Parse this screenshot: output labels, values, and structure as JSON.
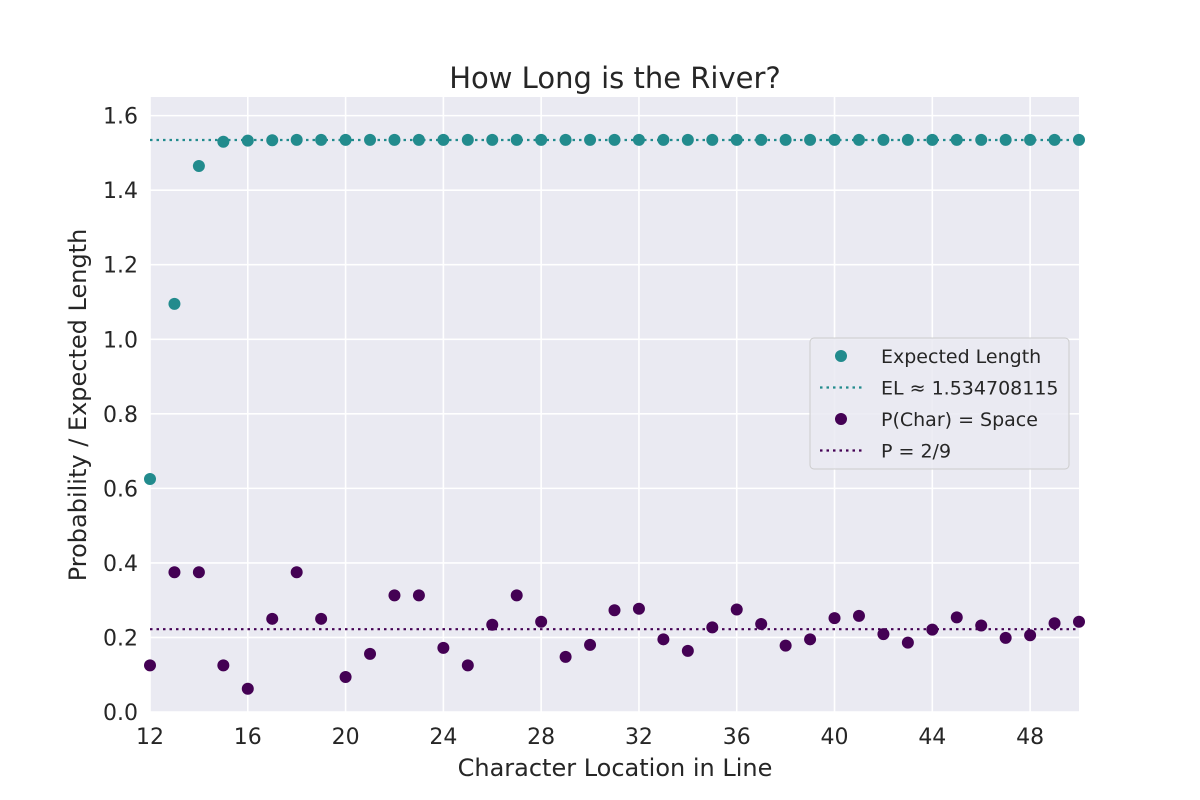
{
  "chart_data": {
    "type": "scatter",
    "title": "How Long is the River?",
    "xlabel": "Character Location in Line",
    "ylabel": "Probability / Expected Length",
    "xlim": [
      12,
      50
    ],
    "ylim": [
      0.0,
      1.65
    ],
    "xticks": [
      12,
      16,
      20,
      24,
      28,
      32,
      36,
      40,
      44,
      48
    ],
    "yticks": [
      "0.0",
      "0.2",
      "0.4",
      "0.6",
      "0.8",
      "1.0",
      "1.2",
      "1.4",
      "1.6"
    ],
    "grid": true,
    "background": "#eaeaf2",
    "legend_position": "center-right",
    "series": [
      {
        "name": "Expected Length",
        "color": "#228b8d",
        "kind": "scatter",
        "x": [
          12,
          13,
          14,
          15,
          16,
          17,
          18,
          19,
          20,
          21,
          22,
          23,
          24,
          25,
          26,
          27,
          28,
          29,
          30,
          31,
          32,
          33,
          34,
          35,
          36,
          37,
          38,
          39,
          40,
          41,
          42,
          43,
          44,
          45,
          46,
          47,
          48,
          49,
          50
        ],
        "y": [
          0.625,
          1.095,
          1.465,
          1.53,
          1.533,
          1.534,
          1.535,
          1.535,
          1.535,
          1.535,
          1.535,
          1.535,
          1.535,
          1.535,
          1.535,
          1.535,
          1.535,
          1.535,
          1.535,
          1.535,
          1.535,
          1.535,
          1.535,
          1.535,
          1.535,
          1.535,
          1.535,
          1.535,
          1.535,
          1.535,
          1.535,
          1.535,
          1.535,
          1.535,
          1.535,
          1.535,
          1.535,
          1.535,
          1.535
        ]
      },
      {
        "name": "EL ≈ 1.534708115",
        "color": "#228b8d",
        "kind": "hline",
        "y": 1.534708115
      },
      {
        "name": "P(Char) = Space",
        "color": "#440154",
        "kind": "scatter",
        "x": [
          12,
          13,
          14,
          15,
          16,
          17,
          18,
          19,
          20,
          21,
          22,
          23,
          24,
          25,
          26,
          27,
          28,
          29,
          30,
          31,
          32,
          33,
          34,
          35,
          36,
          37,
          38,
          39,
          40,
          41,
          42,
          43,
          44,
          45,
          46,
          47,
          48,
          49,
          50
        ],
        "y": [
          0.125,
          0.375,
          0.375,
          0.125,
          0.0625,
          0.25,
          0.375,
          0.25,
          0.094,
          0.156,
          0.313,
          0.313,
          0.172,
          0.125,
          0.234,
          0.313,
          0.242,
          0.148,
          0.18,
          0.273,
          0.277,
          0.195,
          0.164,
          0.227,
          0.275,
          0.236,
          0.178,
          0.195,
          0.252,
          0.258,
          0.209,
          0.186,
          0.221,
          0.254,
          0.232,
          0.199,
          0.206,
          0.238,
          0.242
        ]
      },
      {
        "name": "P = 2/9",
        "color": "#440154",
        "kind": "hline",
        "y": 0.2222222
      }
    ]
  }
}
